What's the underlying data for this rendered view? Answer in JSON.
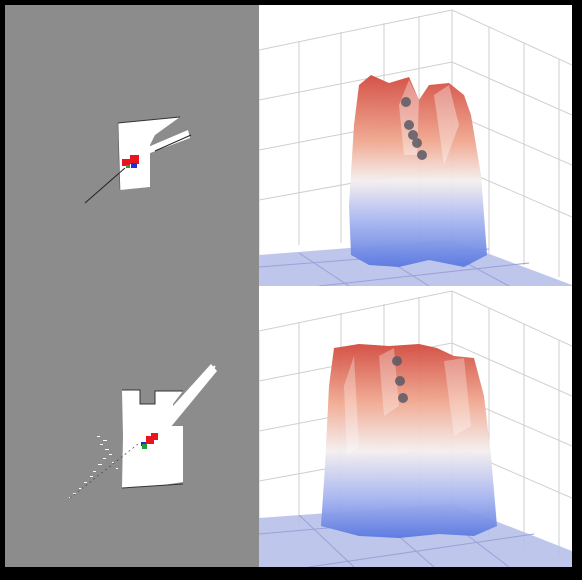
{
  "colors": {
    "background": "#000000",
    "map_unknown": "#8c8c8c",
    "map_free": "#ffffff",
    "robot_pose": "#e8141e",
    "goal_blue": "#1a2fe0",
    "start_green": "#1ea03c",
    "surface_high": "#d85a4a",
    "surface_low": "#5a78e0",
    "floor_plane": "#b4bce8",
    "grid": "#c8c8c8",
    "marker": "#5a5a66"
  },
  "panels": [
    {
      "map_icon": "occupancy-map",
      "plot_icon": "surface-3d-plot",
      "trajectory_markers": 5
    },
    {
      "map_icon": "occupancy-map",
      "plot_icon": "surface-3d-plot",
      "trajectory_markers": 3
    }
  ]
}
